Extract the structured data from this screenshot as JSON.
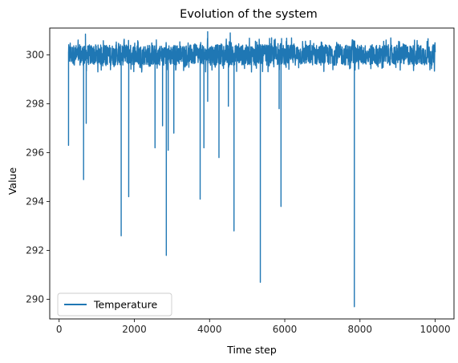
{
  "chart_data": {
    "type": "line",
    "title": "Evolution of the system",
    "xlabel": "Time step",
    "ylabel": "Value",
    "xlim": [
      -250,
      10500
    ],
    "ylim": [
      289.2,
      301.1
    ],
    "xticks": [
      0,
      2000,
      4000,
      6000,
      8000,
      10000
    ],
    "yticks": [
      290,
      292,
      294,
      296,
      298,
      300
    ],
    "grid": false,
    "legend_position": "lower-left",
    "colors": {
      "series": "#1f77b4"
    },
    "series": [
      {
        "name": "Temperature",
        "x_start": 250,
        "x_end": 10000,
        "baseline": 300.0,
        "noise_band": [
          299.3,
          300.7
        ],
        "peaks_above": [
          {
            "x": 700,
            "y": 300.85
          },
          {
            "x": 3950,
            "y": 300.95
          },
          {
            "x": 4550,
            "y": 300.9
          }
        ],
        "dips": [
          {
            "x": 250,
            "y": 296.3
          },
          {
            "x": 650,
            "y": 294.9
          },
          {
            "x": 720,
            "y": 297.2
          },
          {
            "x": 1650,
            "y": 292.6
          },
          {
            "x": 1850,
            "y": 294.2
          },
          {
            "x": 2550,
            "y": 296.2
          },
          {
            "x": 2750,
            "y": 297.1
          },
          {
            "x": 2850,
            "y": 291.8
          },
          {
            "x": 2900,
            "y": 296.1
          },
          {
            "x": 3050,
            "y": 296.8
          },
          {
            "x": 3750,
            "y": 294.1
          },
          {
            "x": 3850,
            "y": 296.2
          },
          {
            "x": 3950,
            "y": 298.1
          },
          {
            "x": 4250,
            "y": 295.8
          },
          {
            "x": 4500,
            "y": 297.9
          },
          {
            "x": 4650,
            "y": 292.8
          },
          {
            "x": 5350,
            "y": 290.7
          },
          {
            "x": 5850,
            "y": 297.8
          },
          {
            "x": 5900,
            "y": 293.8
          },
          {
            "x": 7850,
            "y": 289.7
          }
        ]
      }
    ]
  }
}
